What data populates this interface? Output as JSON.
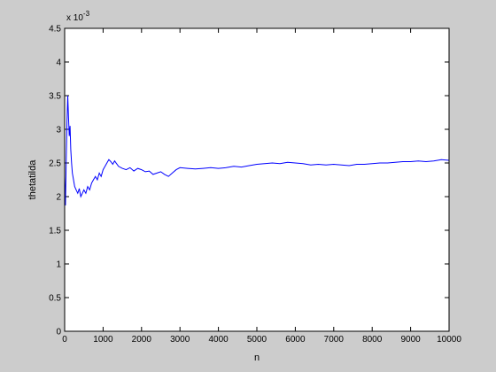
{
  "chart_data": {
    "type": "line",
    "xlabel": "n",
    "ylabel": "thetatilda",
    "exponent_label": "x 10",
    "exponent_power": "-3",
    "xlim": [
      0,
      10000
    ],
    "ylim": [
      0,
      4.5
    ],
    "xticks": [
      0,
      1000,
      2000,
      3000,
      4000,
      5000,
      6000,
      7000,
      8000,
      9000,
      10000
    ],
    "xtick_labels": [
      "0",
      "1000",
      "2000",
      "3000",
      "4000",
      "5000",
      "6000",
      "7000",
      "8000",
      "9000",
      "10000"
    ],
    "yticks": [
      0,
      0.5,
      1,
      1.5,
      2,
      2.5,
      3,
      3.5,
      4,
      4.5
    ],
    "ytick_labels": [
      "0",
      "0.5",
      "1",
      "1.5",
      "2",
      "2.5",
      "3",
      "3.5",
      "4",
      "4.5"
    ],
    "grid": false,
    "series": [
      {
        "color": "#0000ff",
        "x": [
          1,
          20,
          40,
          60,
          80,
          100,
          120,
          140,
          160,
          180,
          200,
          230,
          260,
          300,
          340,
          380,
          420,
          460,
          500,
          550,
          600,
          650,
          700,
          750,
          800,
          850,
          900,
          950,
          1000,
          1050,
          1100,
          1150,
          1200,
          1250,
          1300,
          1400,
          1500,
          1600,
          1700,
          1800,
          1900,
          2000,
          2100,
          2200,
          2300,
          2400,
          2500,
          2600,
          2700,
          2800,
          2900,
          3000,
          3200,
          3400,
          3600,
          3800,
          4000,
          4200,
          4400,
          4600,
          4800,
          5000,
          5200,
          5400,
          5600,
          5800,
          6000,
          6200,
          6400,
          6600,
          6800,
          7000,
          7200,
          7400,
          7600,
          7800,
          8000,
          8200,
          8400,
          8600,
          8800,
          9000,
          9200,
          9400,
          9600,
          9800,
          10000
        ],
        "y": [
          2.3,
          1.87,
          2.5,
          3.1,
          3.5,
          3.2,
          2.9,
          3.05,
          2.7,
          2.5,
          2.35,
          2.25,
          2.15,
          2.1,
          2.05,
          2.12,
          2.0,
          2.05,
          2.1,
          2.05,
          2.15,
          2.1,
          2.2,
          2.25,
          2.3,
          2.25,
          2.35,
          2.3,
          2.4,
          2.45,
          2.5,
          2.55,
          2.52,
          2.48,
          2.53,
          2.45,
          2.42,
          2.4,
          2.43,
          2.38,
          2.42,
          2.4,
          2.37,
          2.38,
          2.33,
          2.35,
          2.37,
          2.33,
          2.3,
          2.35,
          2.4,
          2.43,
          2.42,
          2.41,
          2.42,
          2.43,
          2.42,
          2.43,
          2.45,
          2.44,
          2.46,
          2.48,
          2.49,
          2.5,
          2.49,
          2.51,
          2.5,
          2.49,
          2.47,
          2.48,
          2.47,
          2.48,
          2.47,
          2.46,
          2.48,
          2.48,
          2.49,
          2.5,
          2.5,
          2.51,
          2.52,
          2.52,
          2.53,
          2.52,
          2.53,
          2.55,
          2.54
        ]
      }
    ]
  }
}
